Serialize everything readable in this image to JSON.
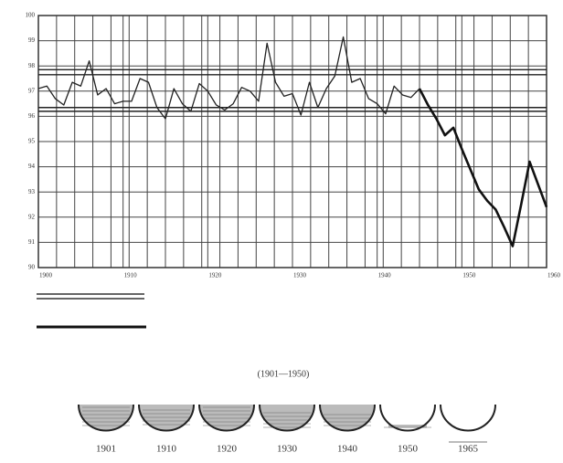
{
  "chart_data": {
    "type": "line",
    "x": [
      1900,
      1901,
      1902,
      1903,
      1904,
      1905,
      1906,
      1907,
      1908,
      1909,
      1910,
      1911,
      1912,
      1913,
      1914,
      1915,
      1916,
      1917,
      1918,
      1919,
      1920,
      1921,
      1922,
      1923,
      1924,
      1925,
      1926,
      1927,
      1928,
      1929,
      1930,
      1931,
      1932,
      1933,
      1934,
      1935,
      1936,
      1937,
      1938,
      1939,
      1940,
      1941,
      1942,
      1943,
      1944,
      1945,
      1946,
      1947,
      1948,
      1949,
      1950,
      1951,
      1952,
      1953,
      1954,
      1955,
      1956,
      1957,
      1958,
      1959,
      1960
    ],
    "series": [
      {
        "color": "#222222",
        "values": [
          97.1,
          97.2,
          96.7,
          96.45,
          97.35,
          97.2,
          98.2,
          96.85,
          97.1,
          96.5,
          96.6,
          96.6,
          97.5,
          97.35,
          96.35,
          95.9,
          97.1,
          96.5,
          96.2,
          97.3,
          97.0,
          96.45,
          96.25,
          96.5,
          97.15,
          97.0,
          96.6,
          98.9,
          97.35,
          96.8,
          96.9,
          96.05,
          97.35,
          96.35,
          97.1,
          97.6,
          99.15,
          97.35,
          97.5,
          96.7,
          96.5,
          96.1,
          97.2,
          96.85,
          96.75,
          97.1,
          null,
          null,
          null,
          null,
          null,
          null,
          null,
          null,
          null,
          null,
          null,
          null,
          null,
          null,
          null
        ]
      },
      {
        "color": "#111111",
        "values": [
          null,
          null,
          null,
          null,
          null,
          null,
          null,
          null,
          null,
          null,
          null,
          null,
          null,
          null,
          null,
          null,
          null,
          null,
          null,
          null,
          null,
          null,
          null,
          null,
          null,
          null,
          null,
          null,
          null,
          null,
          null,
          null,
          null,
          null,
          null,
          null,
          null,
          null,
          null,
          null,
          null,
          null,
          null,
          null,
          null,
          97.1,
          96.45,
          95.9,
          95.25,
          95.55,
          94.7,
          93.9,
          93.1,
          92.65,
          92.3,
          91.6,
          90.85,
          92.5,
          94.2,
          93.3,
          92.4
        ]
      }
    ],
    "xlim": [
      1900,
      1960
    ],
    "xticks": [
      1900,
      1910,
      1920,
      1930,
      1940,
      1950,
      1960
    ],
    "ylim": [
      90,
      100
    ],
    "yticks": [
      90,
      91,
      92,
      93,
      94,
      95,
      96,
      97,
      98,
      99,
      100
    ],
    "reference_lines": [
      97.85,
      97.65,
      96.35,
      96.2
    ],
    "grid": true
  },
  "footer": {
    "caption": "(1901—1950)",
    "bowl_labels": [
      "1901",
      "1910",
      "1920",
      "1930",
      "1940",
      "1950",
      "1965"
    ]
  }
}
